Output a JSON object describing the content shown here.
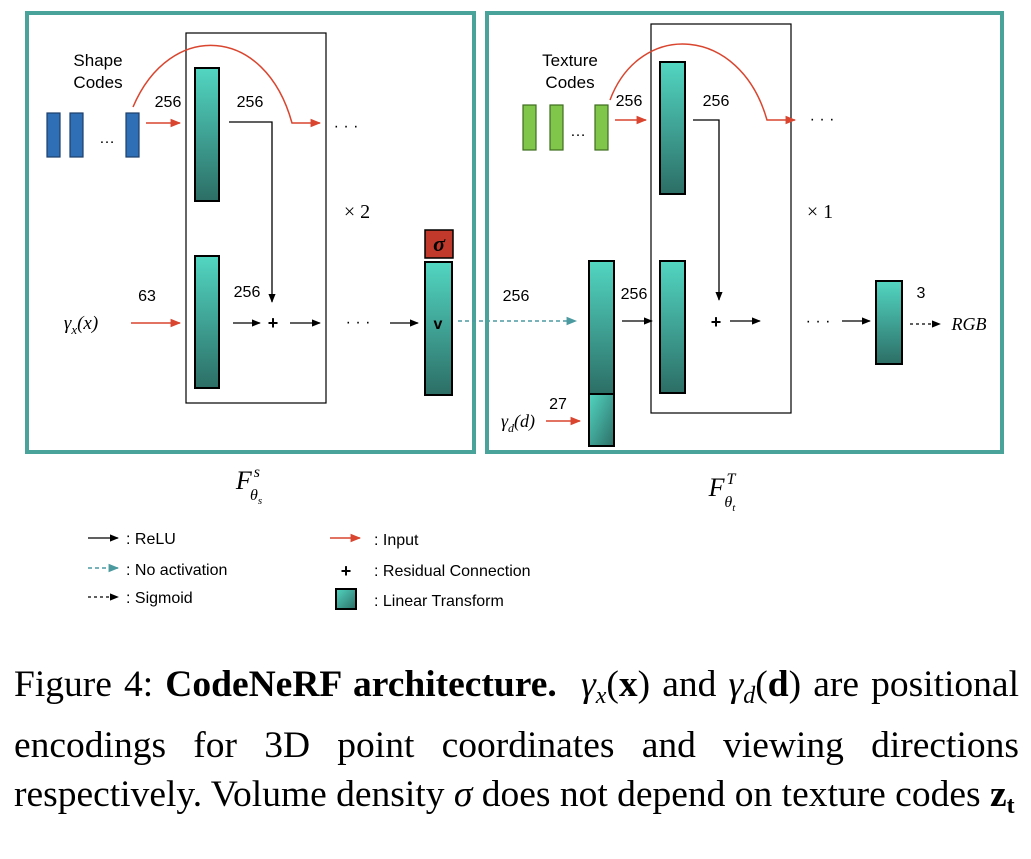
{
  "shape_branch": {
    "codes_label_line1": "Shape",
    "codes_label_line2": "Codes",
    "code_dim": "256",
    "hidden_dim_top": "256",
    "hidden_dim_mid": "256",
    "input_dim": "63",
    "input_symbol": "γ",
    "input_sub": "x",
    "input_arg": "(x)",
    "repeat": "× 2",
    "sigma_symbol": "σ",
    "v_label": "v",
    "ellipsis": "· · ·",
    "codes_ellipsis": "…",
    "function_symbol": "F",
    "function_sup": "s",
    "function_sub": "θ",
    "function_subsub": "s",
    "colors": {
      "frame": "#4aa39a",
      "code": "#2e6fb5",
      "input_arrow": "#d9452e",
      "sigma": "#c0392b"
    }
  },
  "texture_branch": {
    "codes_label_line1": "Texture",
    "codes_label_line2": "Codes",
    "code_dim": "256",
    "hidden_dim_top": "256",
    "hidden_dim_mid": "256",
    "feature_dim": "256",
    "view_dim": "27",
    "view_symbol": "γ",
    "view_sub": "d",
    "view_arg": "(d)",
    "repeat": "× 1",
    "output_dim": "3",
    "output_label": "RGB",
    "ellipsis": "· · ·",
    "codes_ellipsis": "…",
    "function_symbol": "F",
    "function_sup": "T",
    "function_sub": "θ",
    "function_subsub": "t",
    "colors": {
      "code": "#7fc64a"
    }
  },
  "legend": {
    "relu": ": ReLU",
    "no_activation": ": No activation",
    "sigmoid": ": Sigmoid",
    "input": ": Input",
    "residual_symbol": "+",
    "residual": ": Residual Connection",
    "linear": ": Linear Transform"
  },
  "caption": {
    "prefix": "Figure 4: ",
    "bold_title": "CodeNeRF architecture.",
    "part1": "and",
    "part2": "are positional encodings for 3D point coordinates and viewing directions respectively. Volume density",
    "sigma": "σ",
    "part3": "does not depend on texture codes",
    "gx": "γ",
    "gx_sub": "x",
    "gx_open": "(",
    "gx_arg": "x",
    "gx_close": ")",
    "gd": "γ",
    "gd_sub": "d",
    "gd_open": "(",
    "gd_arg": "d",
    "gd_close": ")",
    "z": "z",
    "z_sub": "t"
  }
}
